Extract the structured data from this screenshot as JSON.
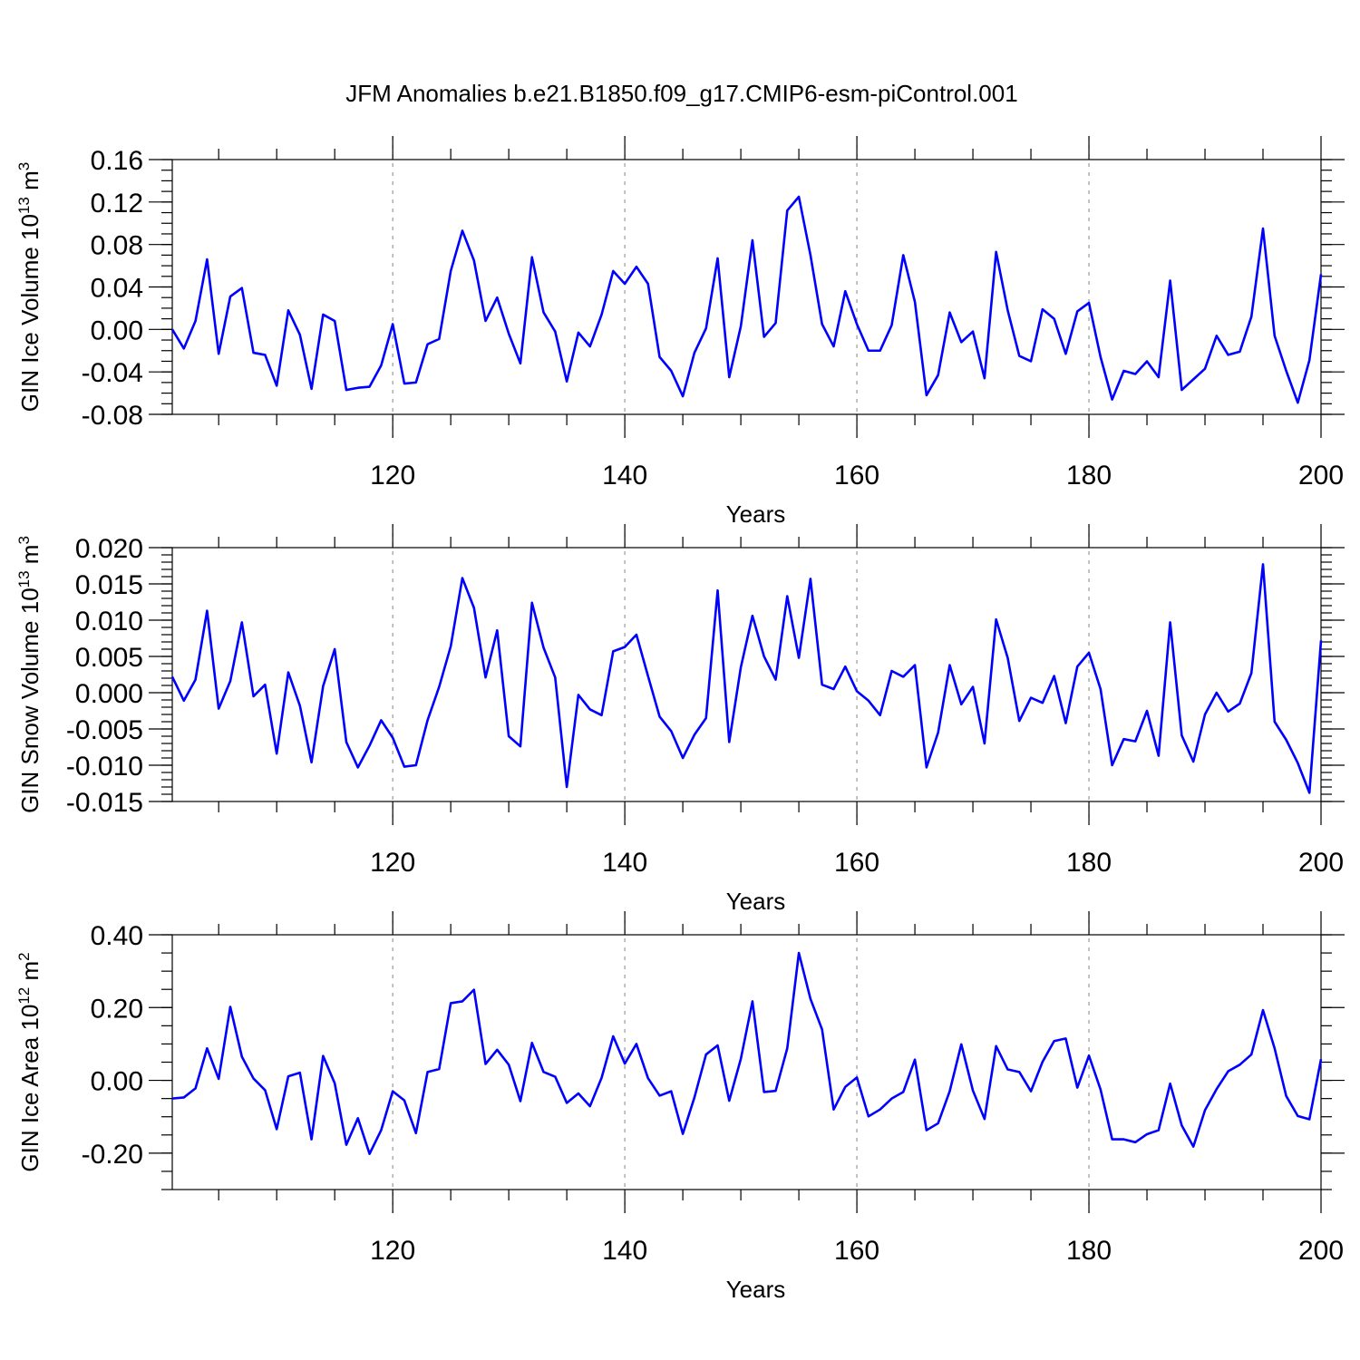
{
  "title": "JFM Anomalies b.e21.B1850.f09_g17.CMIP6-esm-piControl.001",
  "colors": {
    "series": "#0000ff",
    "grid": "#9a9a9a",
    "axis": "#000000"
  },
  "chart_data": [
    {
      "type": "line",
      "ylabel": "GIN Ice Volume 10",
      "ylabel_sup": "13",
      "ylabel_unit": " m",
      "ylabel_unit_sup": "3",
      "xlabel": "Years",
      "xlim": [
        101,
        200
      ],
      "ylim": [
        -0.08,
        0.16
      ],
      "yticks": [
        -0.08,
        -0.04,
        0.0,
        0.04,
        0.08,
        0.12,
        0.16
      ],
      "ytick_labels": [
        "-0.08",
        "-0.04",
        "0.00",
        "0.04",
        "0.08",
        "0.12",
        "0.16"
      ],
      "yminor_step": 0.01,
      "xticks": [
        120,
        140,
        160,
        180,
        200
      ],
      "xtick_labels": [
        "120",
        "140",
        "160",
        "180",
        "200"
      ],
      "xminor_step": 5,
      "grid_x": [
        120,
        140,
        160,
        180
      ],
      "x_start": 101,
      "values": [
        0.0,
        -0.018,
        0.008,
        0.066,
        -0.023,
        0.031,
        0.039,
        -0.022,
        -0.024,
        -0.053,
        0.018,
        -0.005,
        -0.056,
        0.014,
        0.008,
        -0.057,
        -0.055,
        -0.054,
        -0.034,
        0.005,
        -0.051,
        -0.05,
        -0.014,
        -0.009,
        0.055,
        0.093,
        0.065,
        0.008,
        0.03,
        -0.004,
        -0.032,
        0.068,
        0.016,
        -0.002,
        -0.049,
        -0.003,
        -0.016,
        0.014,
        0.055,
        0.043,
        0.059,
        0.043,
        -0.026,
        -0.039,
        -0.063,
        -0.022,
        0.001,
        0.067,
        -0.045,
        0.003,
        0.084,
        -0.007,
        0.006,
        0.112,
        0.125,
        0.07,
        0.005,
        -0.016,
        0.036,
        0.005,
        -0.02,
        -0.02,
        0.004,
        0.07,
        0.026,
        -0.062,
        -0.043,
        0.016,
        -0.012,
        -0.002,
        -0.046,
        0.073,
        0.018,
        -0.025,
        -0.03,
        0.019,
        0.01,
        -0.023,
        0.017,
        0.025,
        -0.026,
        -0.066,
        -0.039,
        -0.042,
        -0.03,
        -0.045,
        0.046,
        -0.057,
        -0.047,
        -0.037,
        -0.006,
        -0.024,
        -0.021,
        0.012,
        0.095,
        -0.006,
        -0.039,
        -0.069,
        -0.029,
        0.052
      ]
    },
    {
      "type": "line",
      "ylabel": "GIN Snow Volume 10",
      "ylabel_sup": "13",
      "ylabel_unit": " m",
      "ylabel_unit_sup": "3",
      "xlabel": "Years",
      "xlim": [
        101,
        200
      ],
      "ylim": [
        -0.015,
        0.02
      ],
      "yticks": [
        -0.015,
        -0.01,
        -0.005,
        0.0,
        0.005,
        0.01,
        0.015,
        0.02
      ],
      "ytick_labels": [
        "-0.015",
        "-0.010",
        "-0.005",
        "0.000",
        "0.005",
        "0.010",
        "0.015",
        "0.020"
      ],
      "yminor_step": 0.001,
      "xticks": [
        120,
        140,
        160,
        180,
        200
      ],
      "xtick_labels": [
        "120",
        "140",
        "160",
        "180",
        "200"
      ],
      "xminor_step": 5,
      "grid_x": [
        120,
        140,
        160,
        180
      ],
      "x_start": 101,
      "values": [
        0.0022,
        -0.0011,
        0.0018,
        0.0113,
        -0.0022,
        0.0016,
        0.0097,
        -0.0005,
        0.0011,
        -0.0084,
        0.0028,
        -0.0018,
        -0.0096,
        0.0009,
        0.006,
        -0.0068,
        -0.0103,
        -0.0073,
        -0.0038,
        -0.0062,
        -0.0102,
        -0.01,
        -0.0038,
        0.0008,
        0.0064,
        0.0158,
        0.0117,
        0.0021,
        0.0086,
        -0.006,
        -0.0074,
        0.0124,
        0.0062,
        0.0021,
        -0.013,
        -0.0003,
        -0.0023,
        -0.0031,
        0.0057,
        0.0063,
        0.008,
        0.0023,
        -0.0033,
        -0.0053,
        -0.009,
        -0.0058,
        -0.0035,
        0.0141,
        -0.0068,
        0.0035,
        0.0106,
        0.005,
        0.0018,
        0.0133,
        0.0048,
        0.0157,
        0.0011,
        0.0005,
        0.0036,
        0.0002,
        -0.0011,
        -0.0031,
        0.003,
        0.0022,
        0.0038,
        -0.0103,
        -0.0055,
        0.0038,
        -0.0016,
        0.0008,
        -0.007,
        0.0101,
        0.0048,
        -0.0039,
        -0.0007,
        -0.0014,
        0.0023,
        -0.0042,
        0.0036,
        0.0055,
        0.0005,
        -0.01,
        -0.0064,
        -0.0067,
        -0.0025,
        -0.0087,
        0.0097,
        -0.0059,
        -0.0095,
        -0.003,
        0.0,
        -0.0026,
        -0.0015,
        0.0027,
        0.0177,
        -0.004,
        -0.0065,
        -0.0097,
        -0.0138,
        0.0072
      ]
    },
    {
      "type": "line",
      "ylabel": "GIN Ice Area 10",
      "ylabel_sup": "12",
      "ylabel_unit": " m",
      "ylabel_unit_sup": "2",
      "xlabel": "Years",
      "xlim": [
        101,
        200
      ],
      "ylim": [
        -0.3,
        0.4
      ],
      "yticks": [
        -0.2,
        0.0,
        0.2,
        0.4
      ],
      "ytick_labels": [
        "-0.20",
        "0.00",
        "0.20",
        "0.40"
      ],
      "yminor_step": 0.05,
      "xticks": [
        120,
        140,
        160,
        180,
        200
      ],
      "xtick_labels": [
        "120",
        "140",
        "160",
        "180",
        "200"
      ],
      "xminor_step": 5,
      "grid_x": [
        120,
        140,
        160,
        180
      ],
      "x_start": 101,
      "values": [
        -0.05,
        -0.047,
        -0.022,
        0.088,
        0.004,
        0.202,
        0.065,
        0.005,
        -0.027,
        -0.134,
        0.011,
        0.021,
        -0.162,
        0.067,
        -0.008,
        -0.177,
        -0.104,
        -0.202,
        -0.137,
        -0.03,
        -0.055,
        -0.145,
        0.023,
        0.031,
        0.212,
        0.217,
        0.249,
        0.045,
        0.084,
        0.043,
        -0.057,
        0.103,
        0.023,
        0.01,
        -0.062,
        -0.036,
        -0.071,
        0.007,
        0.121,
        0.046,
        0.1,
        0.006,
        -0.042,
        -0.03,
        -0.147,
        -0.047,
        0.071,
        0.096,
        -0.056,
        0.059,
        0.217,
        -0.032,
        -0.029,
        0.088,
        0.35,
        0.224,
        0.14,
        -0.08,
        -0.018,
        0.008,
        -0.099,
        -0.08,
        -0.05,
        -0.032,
        0.057,
        -0.137,
        -0.118,
        -0.03,
        0.099,
        -0.028,
        -0.106,
        0.094,
        0.03,
        0.023,
        -0.03,
        0.051,
        0.108,
        0.115,
        -0.02,
        0.068,
        -0.025,
        -0.162,
        -0.162,
        -0.17,
        -0.148,
        -0.137,
        -0.009,
        -0.124,
        -0.182,
        -0.082,
        -0.024,
        0.025,
        0.043,
        0.071,
        0.193,
        0.088,
        -0.043,
        -0.098,
        -0.107,
        0.058
      ]
    }
  ]
}
